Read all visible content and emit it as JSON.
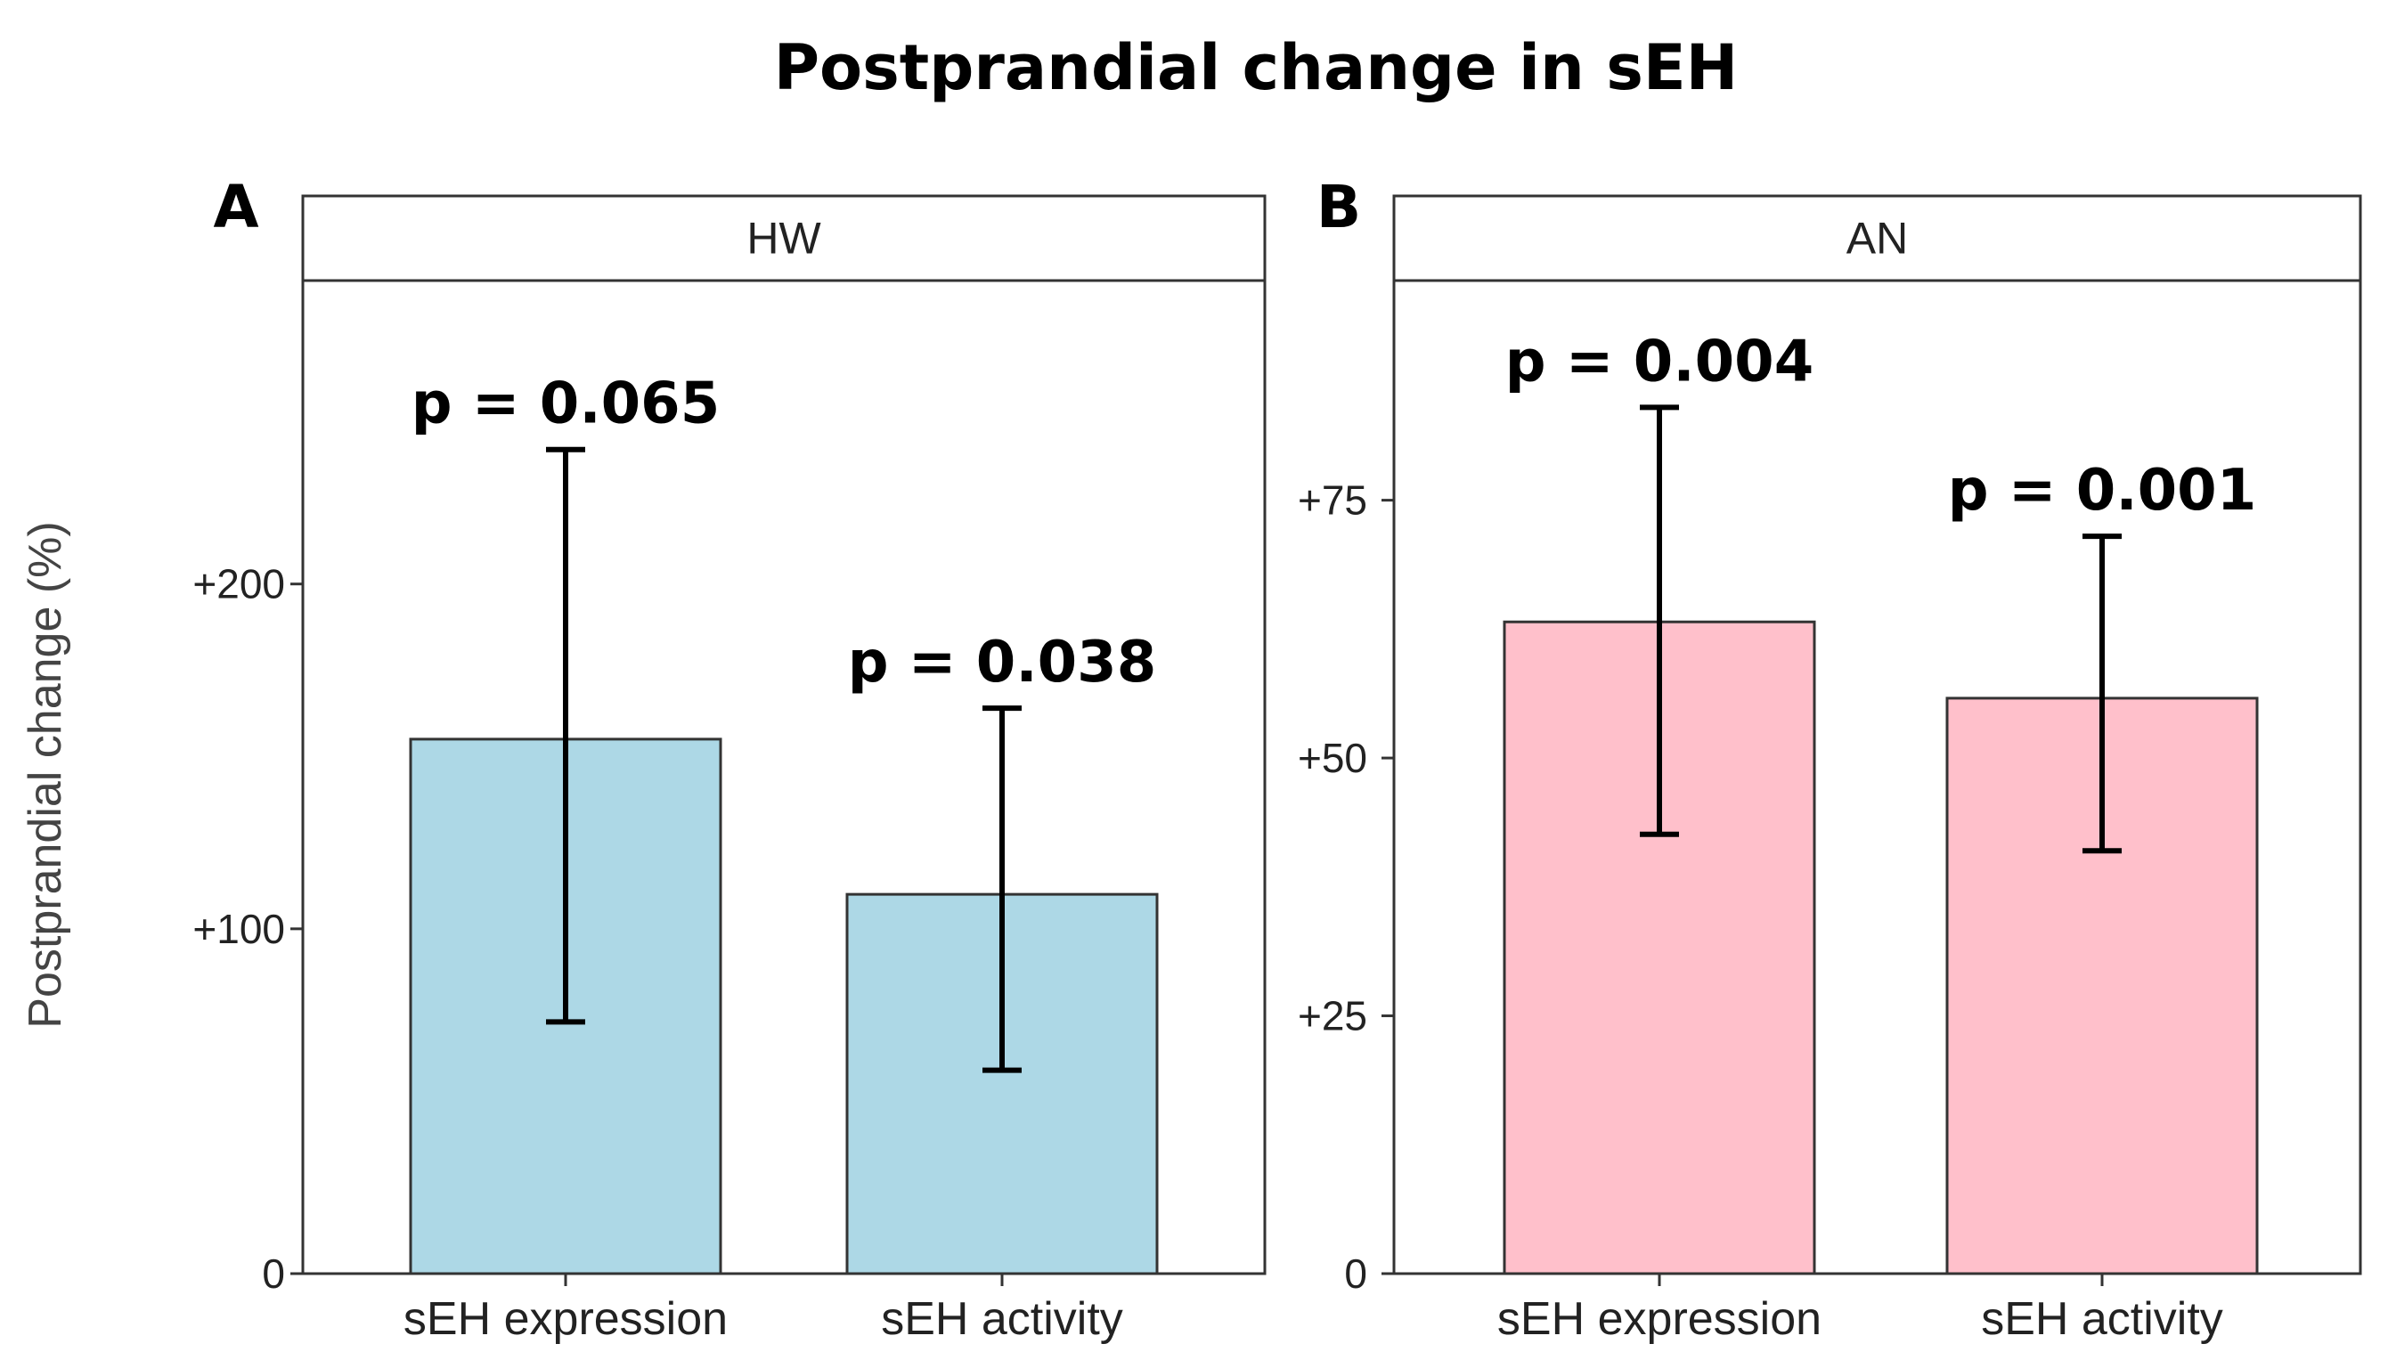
{
  "chart_data": {
    "title": "Postprandial change in sEH",
    "ylabel": "Postprandial change (%)",
    "panels": [
      {
        "letter": "A",
        "strip": "HW",
        "type": "bar",
        "categories": [
          "sEH expression",
          "sEH activity"
        ],
        "values": [
          155,
          110
        ],
        "err_low": [
          73,
          59
        ],
        "err_high": [
          239,
          164
        ],
        "p_labels": [
          "p = 0.065",
          "p = 0.038"
        ],
        "ylim": [
          0,
          288
        ],
        "yticks": [
          0,
          100,
          200
        ],
        "ytick_labels": [
          "0",
          "+100",
          "+200"
        ],
        "color": "#ADD8E6"
      },
      {
        "letter": "B",
        "strip": "AN",
        "type": "bar",
        "categories": [
          "sEH expression",
          "sEH activity"
        ],
        "values": [
          63.2,
          55.8
        ],
        "err_low": [
          42.6,
          41
        ],
        "err_high": [
          84,
          71.5
        ],
        "p_labels": [
          "p = 0.004",
          "p = 0.001"
        ],
        "ylim": [
          0,
          96.3
        ],
        "yticks": [
          0,
          25,
          50,
          75
        ],
        "ytick_labels": [
          "0",
          "+25",
          "+50",
          "+75"
        ],
        "color": "#FFC0CB"
      }
    ]
  }
}
